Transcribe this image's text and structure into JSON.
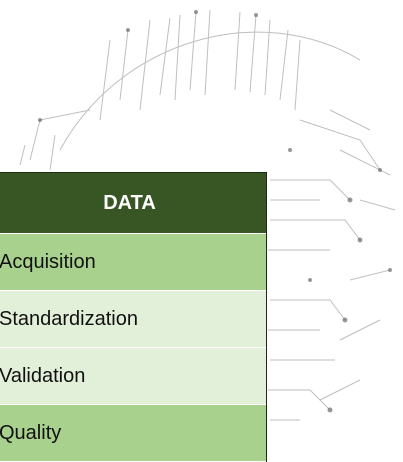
{
  "table": {
    "header": "DATA",
    "rows": [
      "Acquisition",
      "Standardization",
      "Validation",
      "Quality"
    ]
  }
}
